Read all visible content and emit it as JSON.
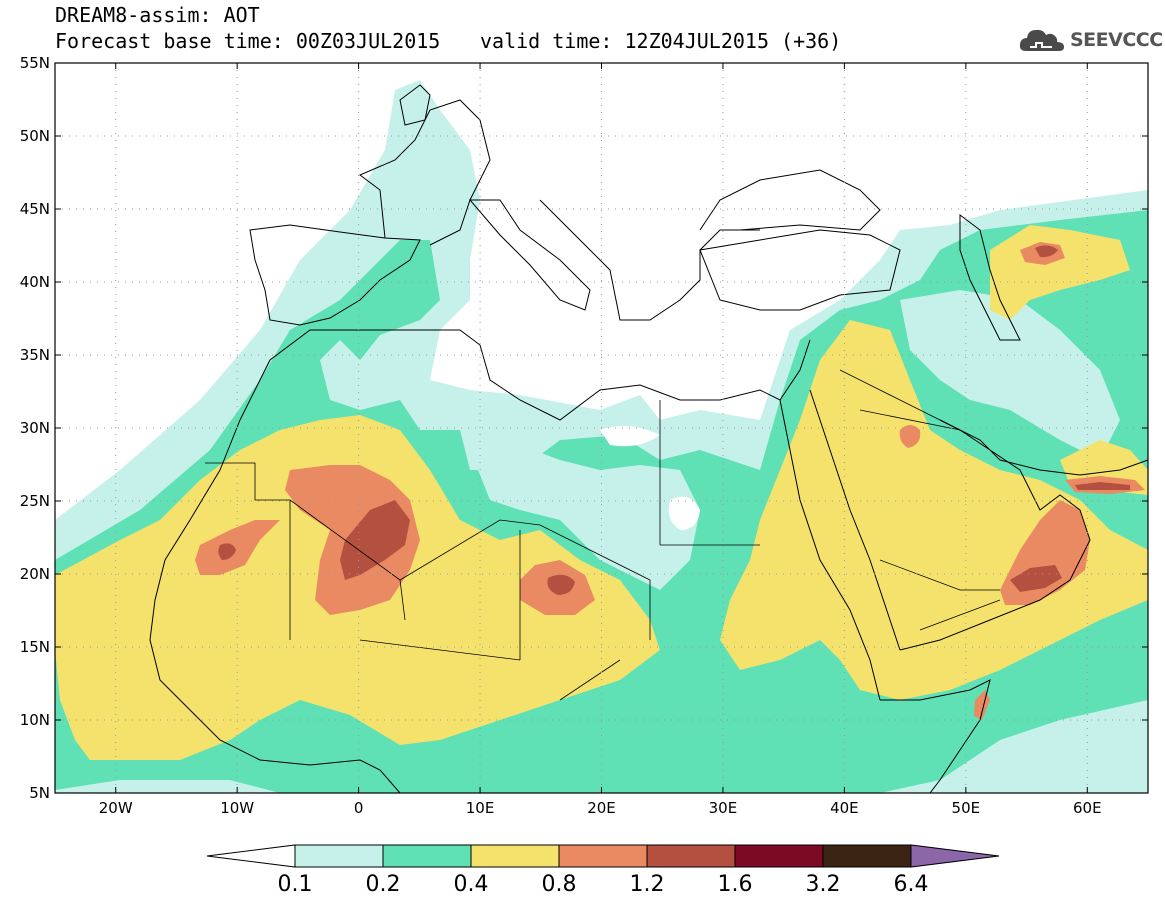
{
  "header": {
    "line1": "DREAM8-assim: AOT",
    "line2": "Forecast base time: 00Z03JUL2015",
    "line3": "valid time: 12Z04JUL2015 (+36)"
  },
  "logo": {
    "text": "SEEVCCC",
    "icon": "cloud-icon"
  },
  "map": {
    "lon_range": [
      -25,
      65
    ],
    "lat_range": [
      5,
      55
    ],
    "lat_ticks": [
      "55N",
      "50N",
      "45N",
      "40N",
      "35N",
      "30N",
      "25N",
      "20N",
      "15N",
      "10N",
      "5N"
    ],
    "lon_ticks": [
      "20W",
      "10W",
      "0",
      "10E",
      "20E",
      "30E",
      "40E",
      "50E",
      "60E"
    ],
    "gridlines": "dotted"
  },
  "colorbar": {
    "labels": [
      "0.1",
      "0.2",
      "0.4",
      "0.8",
      "1.2",
      "1.6",
      "3.2",
      "6.4"
    ],
    "colors": [
      "#c5f1ea",
      "#5fe0b5",
      "#f5e26d",
      "#e98a62",
      "#b4503f",
      "#7d0a25",
      "#3c2414"
    ],
    "under_color": "#ffffff",
    "over_color": "#8b66a8"
  }
}
